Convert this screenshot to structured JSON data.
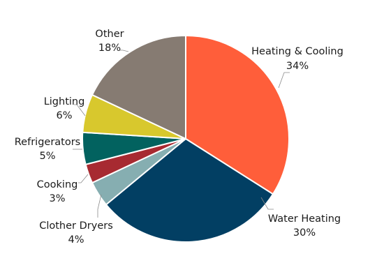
{
  "chart_data": {
    "type": "pie",
    "title": "",
    "slices": [
      {
        "name": "Heating & Cooling",
        "value": 34,
        "label": "34%",
        "color": "#ff5e3a"
      },
      {
        "name": "Water Heating",
        "value": 30,
        "label": "30%",
        "color": "#023f63"
      },
      {
        "name": "Clother Dryers",
        "value": 4,
        "label": "4%",
        "color": "#86aeb1"
      },
      {
        "name": "Cooking",
        "value": 3,
        "label": "3%",
        "color": "#a72a31"
      },
      {
        "name": "Refrigerators",
        "value": 5,
        "label": "5%",
        "color": "#02625f"
      },
      {
        "name": "Lighting",
        "value": 6,
        "label": "6%",
        "color": "#d8c82d"
      },
      {
        "name": "Other",
        "value": 18,
        "label": "18%",
        "color": "#867b72"
      }
    ],
    "start": "12 o'clock",
    "direction": "clockwise",
    "legend": "none",
    "labels": "outside with leader lines"
  }
}
